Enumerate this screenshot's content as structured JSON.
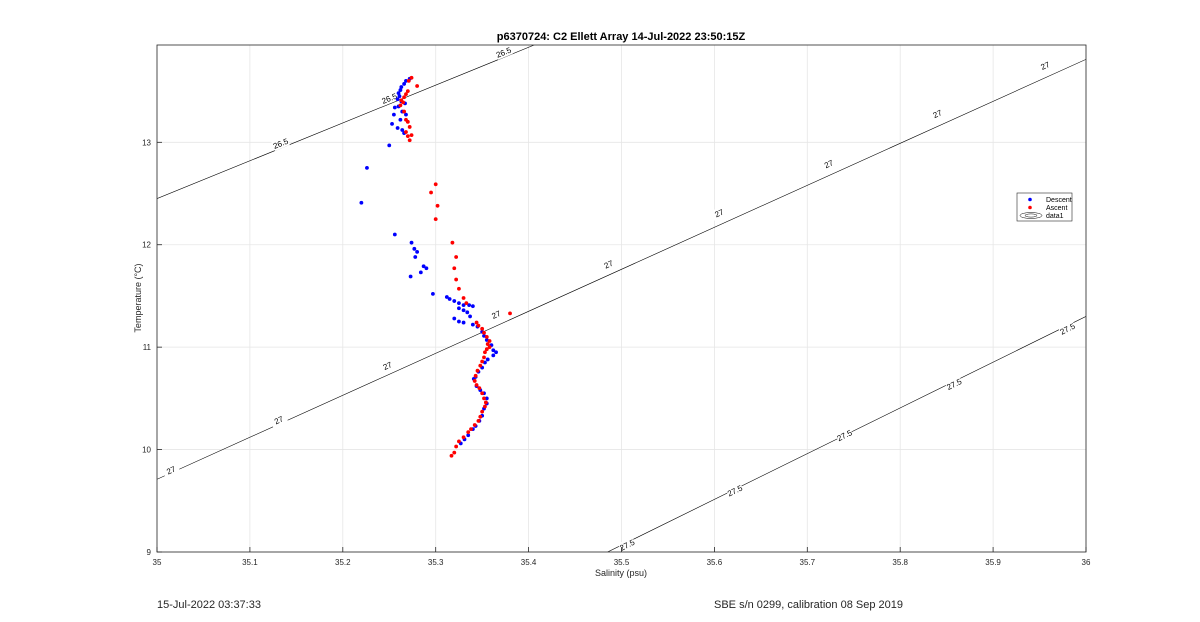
{
  "footer": {
    "left": "15-Jul-2022 03:37:33",
    "right": "SBE s/n 0299, calibration 08 Sep 2019"
  },
  "colors": {
    "descent": "#0000ff",
    "ascent": "#ff0000",
    "contour": "#000000",
    "grid": "#e6e6e6",
    "axis": "#262626"
  },
  "chart_data": {
    "type": "scatter",
    "title": "p6370724: C2 Ellett Array 14-Jul-2022 23:50:15Z",
    "xlabel": "Salinity (psu)",
    "ylabel": "Temperature (°C)",
    "xlim": [
      35,
      36
    ],
    "ylim": [
      9,
      13.95
    ],
    "xticks": [
      "35",
      "35.1",
      "35.2",
      "35.3",
      "35.4",
      "35.5",
      "35.6",
      "35.7",
      "35.8",
      "35.9",
      "36"
    ],
    "yticks": [
      "9",
      "10",
      "11",
      "12",
      "13"
    ],
    "grid": true,
    "legend": {
      "position": "right",
      "entries": [
        "Descent",
        "Ascent",
        "data1"
      ]
    },
    "contours": [
      {
        "level": "26.5",
        "line": [
          [
            35,
            12.45
          ],
          [
            35.406,
            13.95
          ]
        ],
        "labels": [
          [
            35.133,
            12.99
          ],
          [
            35.25,
            13.43
          ],
          [
            35.373,
            13.88
          ]
        ]
      },
      {
        "level": "27",
        "line": [
          [
            35,
            9.71
          ],
          [
            36,
            13.81
          ]
        ],
        "labels": [
          [
            35.015,
            9.8
          ],
          [
            35.131,
            10.29
          ],
          [
            35.248,
            10.82
          ],
          [
            35.365,
            11.32
          ],
          [
            35.486,
            11.81
          ],
          [
            35.605,
            12.31
          ],
          [
            35.723,
            12.79
          ],
          [
            35.84,
            13.28
          ],
          [
            35.956,
            13.75
          ]
        ]
      },
      {
        "level": "27.5",
        "line": [
          [
            35.485,
            9
          ],
          [
            36,
            11.3
          ]
        ],
        "labels": [
          [
            35.506,
            9.07
          ],
          [
            35.622,
            9.6
          ],
          [
            35.74,
            10.14
          ],
          [
            35.858,
            10.64
          ],
          [
            35.98,
            11.18
          ]
        ]
      }
    ],
    "series": [
      {
        "name": "Descent",
        "points": [
          [
            35.272,
            13.62
          ],
          [
            35.268,
            13.6
          ],
          [
            35.266,
            13.57
          ],
          [
            35.263,
            13.54
          ],
          [
            35.262,
            13.51
          ],
          [
            35.26,
            13.48
          ],
          [
            35.261,
            13.45
          ],
          [
            35.259,
            13.42
          ],
          [
            35.263,
            13.4
          ],
          [
            35.267,
            13.38
          ],
          [
            35.26,
            13.35
          ],
          [
            35.256,
            13.34
          ],
          [
            35.264,
            13.3
          ],
          [
            35.268,
            13.27
          ],
          [
            35.255,
            13.27
          ],
          [
            35.262,
            13.22
          ],
          [
            35.253,
            13.18
          ],
          [
            35.259,
            13.14
          ],
          [
            35.264,
            13.12
          ],
          [
            35.266,
            13.09
          ],
          [
            35.25,
            12.97
          ],
          [
            35.226,
            12.75
          ],
          [
            35.22,
            12.41
          ],
          [
            35.256,
            12.1
          ],
          [
            35.274,
            12.02
          ],
          [
            35.277,
            11.96
          ],
          [
            35.28,
            11.93
          ],
          [
            35.278,
            11.88
          ],
          [
            35.287,
            11.79
          ],
          [
            35.29,
            11.77
          ],
          [
            35.284,
            11.73
          ],
          [
            35.273,
            11.69
          ],
          [
            35.297,
            11.52
          ],
          [
            35.312,
            11.49
          ],
          [
            35.315,
            11.47
          ],
          [
            35.32,
            11.45
          ],
          [
            35.325,
            11.43
          ],
          [
            35.33,
            11.41
          ],
          [
            35.336,
            11.41
          ],
          [
            35.34,
            11.4
          ],
          [
            35.325,
            11.38
          ],
          [
            35.33,
            11.36
          ],
          [
            35.334,
            11.34
          ],
          [
            35.337,
            11.3
          ],
          [
            35.32,
            11.28
          ],
          [
            35.325,
            11.25
          ],
          [
            35.33,
            11.24
          ],
          [
            35.34,
            11.22
          ],
          [
            35.345,
            11.2
          ],
          [
            35.35,
            11.15
          ],
          [
            35.352,
            11.11
          ],
          [
            35.355,
            11.07
          ],
          [
            35.36,
            11.02
          ],
          [
            35.362,
            10.97
          ],
          [
            35.365,
            10.95
          ],
          [
            35.362,
            10.92
          ],
          [
            35.356,
            10.88
          ],
          [
            35.353,
            10.85
          ],
          [
            35.35,
            10.8
          ],
          [
            35.346,
            10.76
          ],
          [
            35.343,
            10.71
          ],
          [
            35.341,
            10.69
          ],
          [
            35.344,
            10.62
          ],
          [
            35.348,
            10.58
          ],
          [
            35.352,
            10.55
          ],
          [
            35.355,
            10.5
          ],
          [
            35.355,
            10.45
          ],
          [
            35.352,
            10.4
          ],
          [
            35.35,
            10.33
          ],
          [
            35.347,
            10.28
          ],
          [
            35.343,
            10.23
          ],
          [
            35.34,
            10.2
          ],
          [
            35.335,
            10.14
          ],
          [
            35.331,
            10.1
          ],
          [
            35.327,
            10.06
          ]
        ]
      },
      {
        "name": "Ascent",
        "points": [
          [
            35.274,
            13.63
          ],
          [
            35.271,
            13.6
          ],
          [
            35.28,
            13.55
          ],
          [
            35.27,
            13.5
          ],
          [
            35.268,
            13.47
          ],
          [
            35.266,
            13.44
          ],
          [
            35.263,
            13.41
          ],
          [
            35.265,
            13.39
          ],
          [
            35.262,
            13.36
          ],
          [
            35.266,
            13.3
          ],
          [
            35.268,
            13.22
          ],
          [
            35.27,
            13.2
          ],
          [
            35.272,
            13.15
          ],
          [
            35.268,
            13.1
          ],
          [
            35.274,
            13.07
          ],
          [
            35.27,
            13.06
          ],
          [
            35.272,
            13.02
          ],
          [
            35.3,
            12.59
          ],
          [
            35.295,
            12.51
          ],
          [
            35.302,
            12.38
          ],
          [
            35.3,
            12.25
          ],
          [
            35.318,
            12.02
          ],
          [
            35.322,
            11.88
          ],
          [
            35.32,
            11.77
          ],
          [
            35.322,
            11.66
          ],
          [
            35.325,
            11.57
          ],
          [
            35.33,
            11.48
          ],
          [
            35.333,
            11.43
          ],
          [
            35.38,
            11.33
          ],
          [
            35.344,
            11.24
          ],
          [
            35.346,
            11.21
          ],
          [
            35.35,
            11.18
          ],
          [
            35.352,
            11.14
          ],
          [
            35.355,
            11.1
          ],
          [
            35.358,
            11.06
          ],
          [
            35.356,
            11.03
          ],
          [
            35.358,
            11.0
          ],
          [
            35.355,
            10.98
          ],
          [
            35.353,
            10.95
          ],
          [
            35.352,
            10.9
          ],
          [
            35.35,
            10.86
          ],
          [
            35.348,
            10.82
          ],
          [
            35.345,
            10.77
          ],
          [
            35.343,
            10.72
          ],
          [
            35.342,
            10.67
          ],
          [
            35.344,
            10.63
          ],
          [
            35.347,
            10.6
          ],
          [
            35.35,
            10.55
          ],
          [
            35.352,
            10.5
          ],
          [
            35.354,
            10.46
          ],
          [
            35.353,
            10.42
          ],
          [
            35.35,
            10.37
          ],
          [
            35.348,
            10.32
          ],
          [
            35.346,
            10.28
          ],
          [
            35.342,
            10.24
          ],
          [
            35.338,
            10.2
          ],
          [
            35.335,
            10.17
          ],
          [
            35.33,
            10.12
          ],
          [
            35.325,
            10.08
          ],
          [
            35.322,
            10.03
          ],
          [
            35.32,
            9.97
          ],
          [
            35.317,
            9.94
          ]
        ]
      }
    ]
  }
}
